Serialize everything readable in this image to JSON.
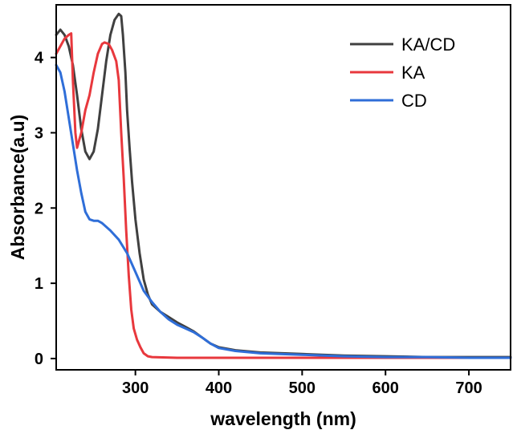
{
  "chart_data": {
    "type": "line",
    "title": "",
    "xlabel": "wavelength (nm)",
    "ylabel": "Absorbance(a.u)",
    "xlim": [
      205,
      750
    ],
    "ylim": [
      -0.15,
      4.7
    ],
    "xticks": [
      300,
      400,
      500,
      600,
      700
    ],
    "yticks": [
      0,
      1,
      2,
      3,
      4
    ],
    "grid": false,
    "legend": "top-right",
    "series": [
      {
        "name": "KA/CD",
        "color": "#404040",
        "points": [
          [
            205,
            4.3
          ],
          [
            210,
            4.37
          ],
          [
            215,
            4.3
          ],
          [
            220,
            4.15
          ],
          [
            225,
            3.9
          ],
          [
            230,
            3.5
          ],
          [
            235,
            3.05
          ],
          [
            240,
            2.75
          ],
          [
            245,
            2.65
          ],
          [
            250,
            2.75
          ],
          [
            255,
            3.05
          ],
          [
            260,
            3.5
          ],
          [
            265,
            3.95
          ],
          [
            270,
            4.3
          ],
          [
            275,
            4.5
          ],
          [
            280,
            4.58
          ],
          [
            283,
            4.55
          ],
          [
            285,
            4.3
          ],
          [
            288,
            3.8
          ],
          [
            290,
            3.3
          ],
          [
            293,
            2.8
          ],
          [
            296,
            2.35
          ],
          [
            300,
            1.85
          ],
          [
            305,
            1.4
          ],
          [
            310,
            1.05
          ],
          [
            315,
            0.85
          ],
          [
            320,
            0.72
          ],
          [
            330,
            0.62
          ],
          [
            340,
            0.55
          ],
          [
            350,
            0.48
          ],
          [
            360,
            0.42
          ],
          [
            370,
            0.36
          ],
          [
            380,
            0.28
          ],
          [
            390,
            0.2
          ],
          [
            400,
            0.15
          ],
          [
            420,
            0.11
          ],
          [
            450,
            0.08
          ],
          [
            500,
            0.06
          ],
          [
            550,
            0.04
          ],
          [
            600,
            0.03
          ],
          [
            650,
            0.02
          ],
          [
            700,
            0.02
          ],
          [
            750,
            0.02
          ]
        ]
      },
      {
        "name": "KA",
        "color": "#e8383d",
        "points": [
          [
            205,
            4.05
          ],
          [
            210,
            4.15
          ],
          [
            215,
            4.25
          ],
          [
            220,
            4.3
          ],
          [
            223,
            4.32
          ],
          [
            225,
            3.7
          ],
          [
            228,
            3.0
          ],
          [
            230,
            2.8
          ],
          [
            235,
            3.0
          ],
          [
            240,
            3.3
          ],
          [
            245,
            3.5
          ],
          [
            250,
            3.8
          ],
          [
            255,
            4.05
          ],
          [
            260,
            4.18
          ],
          [
            263,
            4.2
          ],
          [
            268,
            4.18
          ],
          [
            272,
            4.1
          ],
          [
            277,
            3.95
          ],
          [
            280,
            3.7
          ],
          [
            283,
            3.0
          ],
          [
            286,
            2.4
          ],
          [
            289,
            1.7
          ],
          [
            292,
            1.1
          ],
          [
            295,
            0.65
          ],
          [
            298,
            0.4
          ],
          [
            302,
            0.25
          ],
          [
            306,
            0.15
          ],
          [
            310,
            0.07
          ],
          [
            315,
            0.03
          ],
          [
            320,
            0.02
          ],
          [
            350,
            0.01
          ],
          [
            400,
            0.01
          ],
          [
            500,
            0.01
          ],
          [
            600,
            0.01
          ],
          [
            700,
            0.01
          ],
          [
            750,
            0.01
          ]
        ]
      },
      {
        "name": "CD",
        "color": "#2f6ed8",
        "points": [
          [
            205,
            3.9
          ],
          [
            210,
            3.8
          ],
          [
            215,
            3.55
          ],
          [
            220,
            3.2
          ],
          [
            225,
            2.85
          ],
          [
            230,
            2.5
          ],
          [
            235,
            2.2
          ],
          [
            240,
            1.95
          ],
          [
            245,
            1.85
          ],
          [
            250,
            1.83
          ],
          [
            255,
            1.83
          ],
          [
            260,
            1.8
          ],
          [
            270,
            1.7
          ],
          [
            280,
            1.58
          ],
          [
            290,
            1.4
          ],
          [
            300,
            1.15
          ],
          [
            310,
            0.9
          ],
          [
            320,
            0.75
          ],
          [
            330,
            0.62
          ],
          [
            340,
            0.52
          ],
          [
            350,
            0.45
          ],
          [
            360,
            0.4
          ],
          [
            370,
            0.35
          ],
          [
            380,
            0.28
          ],
          [
            390,
            0.2
          ],
          [
            400,
            0.14
          ],
          [
            420,
            0.1
          ],
          [
            450,
            0.07
          ],
          [
            500,
            0.05
          ],
          [
            550,
            0.03
          ],
          [
            600,
            0.02
          ],
          [
            650,
            0.02
          ],
          [
            700,
            0.01
          ],
          [
            750,
            0.01
          ]
        ]
      }
    ]
  }
}
